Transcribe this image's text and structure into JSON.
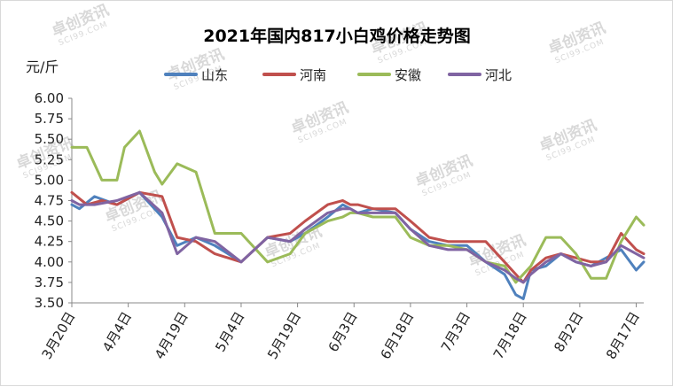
{
  "chart_data": {
    "type": "line",
    "title": "2021年国内817小白鸡价格走势图",
    "ylabel": "元/斤",
    "xlabel": "",
    "ylim": [
      3.5,
      6.0
    ],
    "yticks": [
      "6.00",
      "5.75",
      "5.50",
      "5.25",
      "5.00",
      "4.75",
      "4.50",
      "4.25",
      "4.00",
      "3.75",
      "3.50"
    ],
    "categories": [
      "3月20日",
      "4月4日",
      "4月19日",
      "5月4日",
      "5月19日",
      "6月3日",
      "6月18日",
      "7月3日",
      "7月18日",
      "8月2日",
      "8月17日"
    ],
    "grid": false,
    "legend_position": "top",
    "watermark": "卓创资讯 SCI99.COM",
    "series": [
      {
        "name": "山东",
        "color": "#4f81bd",
        "x": [
          0,
          2,
          6,
          12,
          18,
          24,
          28,
          33,
          38,
          45,
          52,
          58,
          62,
          68,
          72,
          74,
          76,
          80,
          86,
          90,
          95,
          100,
          105,
          110,
          115,
          118,
          120,
          122,
          126,
          130,
          134,
          138,
          142,
          146,
          150,
          152
        ],
        "values": [
          4.7,
          4.65,
          4.8,
          4.7,
          4.85,
          4.55,
          4.2,
          4.3,
          4.2,
          4.0,
          4.3,
          4.25,
          4.35,
          4.55,
          4.7,
          4.65,
          4.6,
          4.65,
          4.6,
          4.4,
          4.25,
          4.2,
          4.2,
          4.0,
          3.85,
          3.6,
          3.55,
          3.9,
          3.95,
          4.1,
          4.0,
          3.95,
          4.05,
          4.15,
          3.9,
          4.0
        ]
      },
      {
        "name": "河南",
        "color": "#c0504d",
        "x": [
          0,
          4,
          8,
          12,
          18,
          24,
          28,
          33,
          38,
          45,
          52,
          58,
          62,
          68,
          72,
          74,
          76,
          80,
          86,
          90,
          95,
          100,
          105,
          110,
          115,
          118,
          120,
          122,
          126,
          130,
          134,
          138,
          142,
          146,
          150,
          152
        ],
        "values": [
          4.85,
          4.7,
          4.75,
          4.7,
          4.85,
          4.8,
          4.3,
          4.25,
          4.1,
          4.0,
          4.3,
          4.35,
          4.5,
          4.7,
          4.75,
          4.7,
          4.7,
          4.65,
          4.65,
          4.5,
          4.3,
          4.25,
          4.25,
          4.25,
          4.0,
          3.85,
          3.75,
          3.9,
          4.05,
          4.1,
          4.05,
          4.0,
          4.0,
          4.35,
          4.15,
          4.1
        ]
      },
      {
        "name": "安徽",
        "color": "#9bbb59",
        "x": [
          0,
          4,
          8,
          12,
          14,
          18,
          22,
          24,
          28,
          33,
          38,
          45,
          52,
          58,
          62,
          68,
          72,
          74,
          76,
          80,
          86,
          90,
          95,
          100,
          105,
          110,
          115,
          118,
          120,
          122,
          126,
          130,
          134,
          138,
          142,
          146,
          150,
          152
        ],
        "values": [
          5.4,
          5.4,
          5.0,
          5.0,
          5.4,
          5.6,
          5.1,
          4.95,
          5.2,
          5.1,
          4.35,
          4.35,
          4.0,
          4.1,
          4.35,
          4.5,
          4.55,
          4.6,
          4.6,
          4.55,
          4.55,
          4.3,
          4.2,
          4.2,
          4.15,
          4.0,
          3.95,
          3.75,
          3.85,
          3.95,
          4.3,
          4.3,
          4.1,
          3.8,
          3.8,
          4.25,
          4.55,
          4.45
        ]
      },
      {
        "name": "河北",
        "color": "#8064a2",
        "x": [
          0,
          2,
          6,
          12,
          18,
          24,
          28,
          33,
          38,
          45,
          52,
          58,
          62,
          68,
          72,
          74,
          76,
          80,
          86,
          90,
          95,
          100,
          105,
          110,
          115,
          118,
          120,
          122,
          126,
          130,
          134,
          138,
          142,
          146,
          150,
          152
        ],
        "values": [
          4.75,
          4.7,
          4.7,
          4.75,
          4.85,
          4.6,
          4.1,
          4.3,
          4.25,
          4.0,
          4.3,
          4.25,
          4.4,
          4.6,
          4.65,
          4.65,
          4.6,
          4.6,
          4.6,
          4.4,
          4.2,
          4.15,
          4.15,
          4.0,
          3.9,
          3.8,
          3.75,
          3.85,
          4.0,
          4.1,
          4.0,
          3.95,
          4.0,
          4.2,
          4.1,
          4.05
        ]
      }
    ]
  }
}
